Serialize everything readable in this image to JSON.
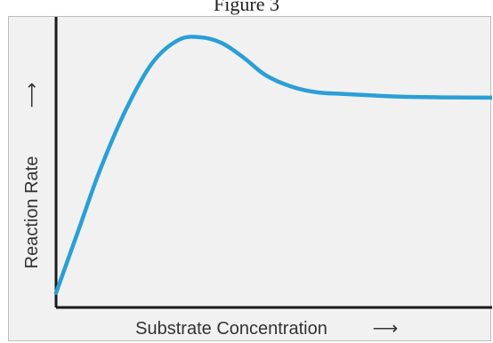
{
  "figure": {
    "title": "Figure 3"
  },
  "chart_data": {
    "type": "line",
    "xlabel": "Substrate Concentration",
    "ylabel": "Reaction Rate",
    "x_arrow": "⟶",
    "y_arrow": "⟶",
    "xlim": [
      0,
      100
    ],
    "ylim": [
      0,
      100
    ],
    "grid": false,
    "ticks": "none",
    "series": [
      {
        "color": "#2a9fd6",
        "x": [
          0,
          5,
          10,
          16,
          22,
          28,
          33,
          38,
          43,
          48,
          54,
          60,
          66,
          72,
          80,
          90,
          100
        ],
        "y": [
          5,
          26,
          47,
          68,
          84,
          92,
          93,
          91,
          86,
          80,
          76,
          74,
          73.5,
          73,
          72.5,
          72.3,
          72.2
        ]
      }
    ],
    "colors": {
      "line": "#2a9fd6",
      "axis": "#1a1a1a",
      "panel": "#f1f1f1",
      "text": "#333333"
    }
  }
}
